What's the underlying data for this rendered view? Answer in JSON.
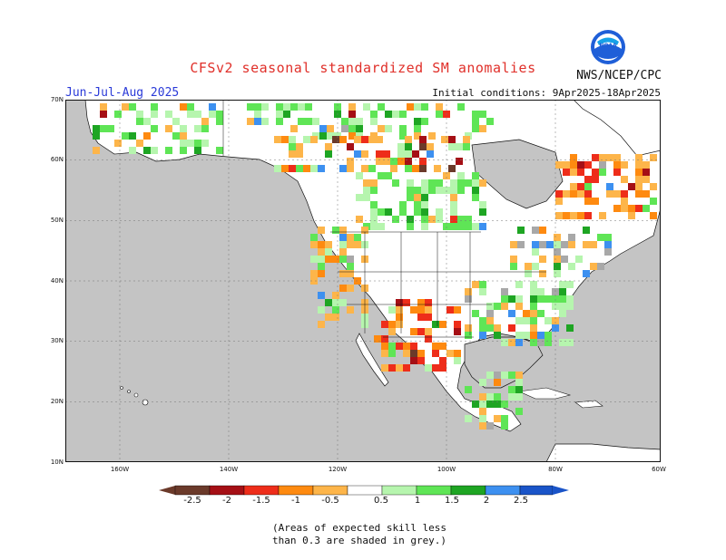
{
  "header": {
    "title": "CFSv2 seasonal standardized SM anomalies",
    "season": "Jun-Jul-Aug 2025",
    "initial_conditions": "Initial conditions: 9Apr2025-18Apr2025",
    "organization": "NWS/NCEP/CPC",
    "logo_text": "NOAA"
  },
  "map": {
    "lat_labels": [
      "70N",
      "60N",
      "50N",
      "40N",
      "30N",
      "20N",
      "10N"
    ],
    "lon_labels": [
      "160W",
      "140W",
      "120W",
      "100W",
      "80W",
      "60W"
    ],
    "ocean_color": "#c4c4c4",
    "land_color": "#ffffff",
    "grey_color": "#a8a8a8"
  },
  "legend": {
    "labels": [
      "-2.5",
      "-2",
      "-1.5",
      "-1",
      "-0.5",
      "0.5",
      "1",
      "1.5",
      "2",
      "2.5"
    ],
    "colors": [
      "#6b3a2a",
      "#a50f15",
      "#ee2d1a",
      "#fe8a10",
      "#fdb54a",
      "#ffffff",
      "#b6f5ae",
      "#5fe556",
      "#1ea523",
      "#1e9e3c",
      "#3d90f0",
      "#1a54c8"
    ],
    "note_line1": "(Areas of expected skill less",
    "note_line2": "than 0.3 are shaded in grey.)"
  }
}
